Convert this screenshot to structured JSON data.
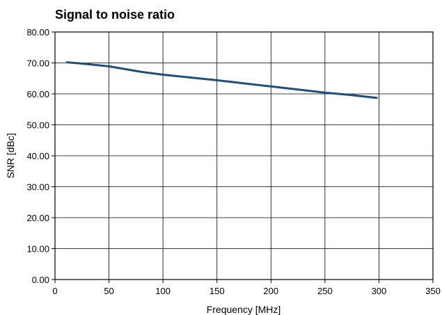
{
  "chart_data": {
    "type": "line",
    "title": "Signal to noise ratio",
    "xlabel": "Frequency [MHz]",
    "ylabel": "SNR [dBc]",
    "xlim": [
      0,
      350
    ],
    "ylim": [
      0,
      80
    ],
    "x_ticks": [
      0,
      50,
      100,
      150,
      200,
      250,
      300,
      350
    ],
    "x_tick_labels": [
      "0",
      "50",
      "100",
      "150",
      "200",
      "250",
      "300",
      "350"
    ],
    "y_ticks": [
      0,
      10,
      20,
      30,
      40,
      50,
      60,
      70,
      80
    ],
    "y_tick_labels": [
      "0.00",
      "10.00",
      "20.00",
      "30.00",
      "40.00",
      "50.00",
      "60.00",
      "70.00",
      "80.00"
    ],
    "grid": true,
    "series": [
      {
        "color": "#1f4e79",
        "x": [
          11,
          25,
          50,
          65,
          80,
          100,
          125,
          150,
          175,
          200,
          225,
          250,
          275,
          298
        ],
        "y": [
          70.2,
          69.8,
          68.9,
          68.0,
          67.1,
          66.2,
          65.3,
          64.4,
          63.4,
          62.4,
          61.4,
          60.4,
          59.6,
          58.7
        ]
      }
    ]
  }
}
